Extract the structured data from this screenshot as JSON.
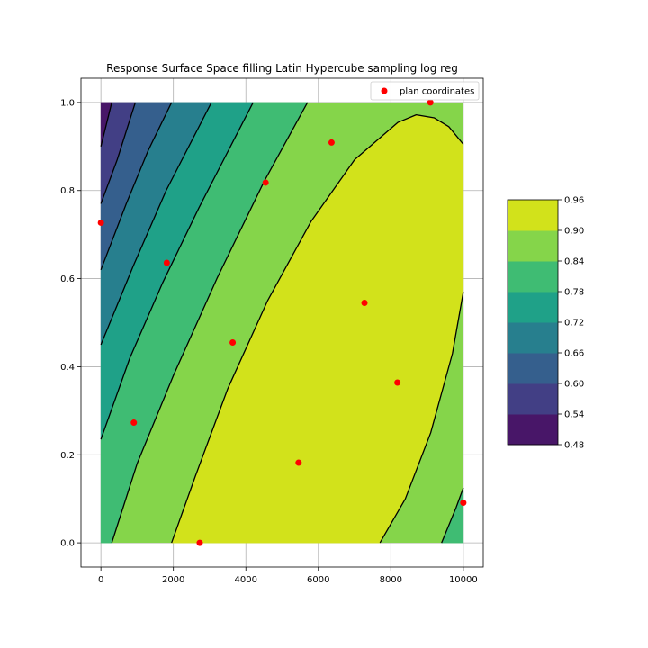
{
  "chart_data": {
    "type": "contourf",
    "title": "Response Surface Space filling Latin Hypercube sampling log reg",
    "xlabel": "",
    "ylabel": "",
    "xlim": [
      -550,
      10550
    ],
    "ylim": [
      -0.055,
      1.055
    ],
    "xticks": [
      0,
      2000,
      4000,
      6000,
      8000,
      10000
    ],
    "xtick_labels": [
      "0",
      "2000",
      "4000",
      "6000",
      "8000",
      "10000"
    ],
    "yticks": [
      0.0,
      0.2,
      0.4,
      0.6,
      0.8,
      1.0
    ],
    "ytick_labels": [
      "0.0",
      "0.2",
      "0.4",
      "0.6",
      "0.8",
      "1.0"
    ],
    "grid": true,
    "legend": {
      "location": "upper right",
      "entries": [
        "plan coordinates"
      ]
    },
    "colorbar": {
      "levels": [
        0.48,
        0.54,
        0.6,
        0.66,
        0.72,
        0.78,
        0.84,
        0.9,
        0.96
      ],
      "tick_labels": [
        "0.48",
        "0.54",
        "0.60",
        "0.66",
        "0.72",
        "0.78",
        "0.84",
        "0.90",
        "0.96"
      ],
      "colors": [
        "#481668",
        "#423f85",
        "#355f8d",
        "#277f8e",
        "#1fa188",
        "#3fbc73",
        "#85d54a",
        "#d2e21b"
      ]
    },
    "contour_lines": [
      {
        "level": 0.54,
        "points": [
          [
            0,
            0.9
          ],
          [
            300,
            1.0
          ]
        ]
      },
      {
        "level": 0.6,
        "points": [
          [
            0,
            0.77
          ],
          [
            450,
            0.87
          ],
          [
            950,
            1.0
          ]
        ]
      },
      {
        "level": 0.66,
        "points": [
          [
            0,
            0.62
          ],
          [
            700,
            0.77
          ],
          [
            1300,
            0.89
          ],
          [
            1950,
            1.0
          ]
        ]
      },
      {
        "level": 0.72,
        "points": [
          [
            0,
            0.45
          ],
          [
            900,
            0.63
          ],
          [
            1800,
            0.8
          ],
          [
            3050,
            1.0
          ]
        ]
      },
      {
        "level": 0.78,
        "points": [
          [
            0,
            0.235
          ],
          [
            800,
            0.42
          ],
          [
            1700,
            0.59
          ],
          [
            2700,
            0.76
          ],
          [
            4200,
            1.0
          ]
        ]
      },
      {
        "level": 0.84,
        "points": [
          [
            300,
            0.0
          ],
          [
            1000,
            0.18
          ],
          [
            2000,
            0.38
          ],
          [
            3200,
            0.6
          ],
          [
            4500,
            0.82
          ],
          [
            5700,
            1.0
          ]
        ]
      },
      {
        "level": 0.9,
        "points": [
          [
            1950,
            0.0
          ],
          [
            2600,
            0.15
          ],
          [
            3500,
            0.35
          ],
          [
            4600,
            0.55
          ],
          [
            5800,
            0.73
          ],
          [
            7000,
            0.87
          ],
          [
            8200,
            0.955
          ],
          [
            8700,
            0.972
          ],
          [
            9200,
            0.965
          ],
          [
            9600,
            0.945
          ],
          [
            10000,
            0.905
          ]
        ]
      },
      {
        "level": 0.9,
        "points": [
          [
            7700,
            0.0
          ],
          [
            8400,
            0.1
          ],
          [
            9100,
            0.25
          ],
          [
            9700,
            0.43
          ],
          [
            10000,
            0.57
          ]
        ]
      },
      {
        "level": 0.84,
        "points": [
          [
            9400,
            0.0
          ],
          [
            9800,
            0.08
          ],
          [
            10000,
            0.125
          ]
        ]
      }
    ],
    "filled_regions": [
      {
        "band": 0,
        "points": [
          [
            0,
            1.0
          ],
          [
            0,
            0.9
          ],
          [
            300,
            1.0
          ]
        ]
      },
      {
        "band": 1,
        "points": [
          [
            0,
            0.9
          ],
          [
            0,
            0.77
          ],
          [
            450,
            0.87
          ],
          [
            950,
            1.0
          ],
          [
            300,
            1.0
          ]
        ]
      },
      {
        "band": 2,
        "points": [
          [
            0,
            0.77
          ],
          [
            0,
            0.62
          ],
          [
            700,
            0.77
          ],
          [
            1300,
            0.89
          ],
          [
            1950,
            1.0
          ],
          [
            950,
            1.0
          ],
          [
            450,
            0.87
          ]
        ]
      },
      {
        "band": 3,
        "points": [
          [
            0,
            0.62
          ],
          [
            0,
            0.45
          ],
          [
            900,
            0.63
          ],
          [
            1800,
            0.8
          ],
          [
            3050,
            1.0
          ],
          [
            1950,
            1.0
          ],
          [
            1300,
            0.89
          ],
          [
            700,
            0.77
          ]
        ]
      },
      {
        "band": 4,
        "points": [
          [
            0,
            0.45
          ],
          [
            0,
            0.235
          ],
          [
            800,
            0.42
          ],
          [
            1700,
            0.59
          ],
          [
            2700,
            0.76
          ],
          [
            4200,
            1.0
          ],
          [
            3050,
            1.0
          ],
          [
            1800,
            0.8
          ],
          [
            900,
            0.63
          ]
        ]
      },
      {
        "band": 5,
        "points": [
          [
            0,
            0.235
          ],
          [
            0,
            0.0
          ],
          [
            300,
            0.0
          ],
          [
            1000,
            0.18
          ],
          [
            2000,
            0.38
          ],
          [
            3200,
            0.6
          ],
          [
            4500,
            0.82
          ],
          [
            5700,
            1.0
          ],
          [
            4200,
            1.0
          ],
          [
            2700,
            0.76
          ],
          [
            1700,
            0.59
          ],
          [
            800,
            0.42
          ]
        ]
      },
      {
        "band": 7,
        "points": [
          [
            1950,
            0.0
          ],
          [
            2600,
            0.15
          ],
          [
            3500,
            0.35
          ],
          [
            4600,
            0.55
          ],
          [
            5800,
            0.73
          ],
          [
            7000,
            0.87
          ],
          [
            8200,
            0.955
          ],
          [
            8700,
            0.972
          ],
          [
            9200,
            0.965
          ],
          [
            9600,
            0.945
          ],
          [
            10000,
            0.905
          ],
          [
            10000,
            0.57
          ],
          [
            9700,
            0.43
          ],
          [
            9100,
            0.25
          ],
          [
            8400,
            0.1
          ],
          [
            7700,
            0.0
          ]
        ]
      },
      {
        "band": 5,
        "points": [
          [
            9400,
            0.0
          ],
          [
            9800,
            0.08
          ],
          [
            10000,
            0.125
          ],
          [
            10000,
            0.0
          ]
        ]
      }
    ],
    "background_band": 6,
    "series": [
      {
        "name": "plan coordinates",
        "type": "scatter",
        "color": "#ff0000",
        "x": [
          0,
          909,
          1818,
          2727,
          3636,
          4545,
          5455,
          6364,
          7273,
          8182,
          9091,
          10000
        ],
        "y": [
          0.727,
          0.273,
          0.636,
          0.0,
          0.455,
          0.818,
          0.182,
          0.909,
          0.545,
          0.364,
          1.0,
          0.091
        ]
      }
    ]
  }
}
